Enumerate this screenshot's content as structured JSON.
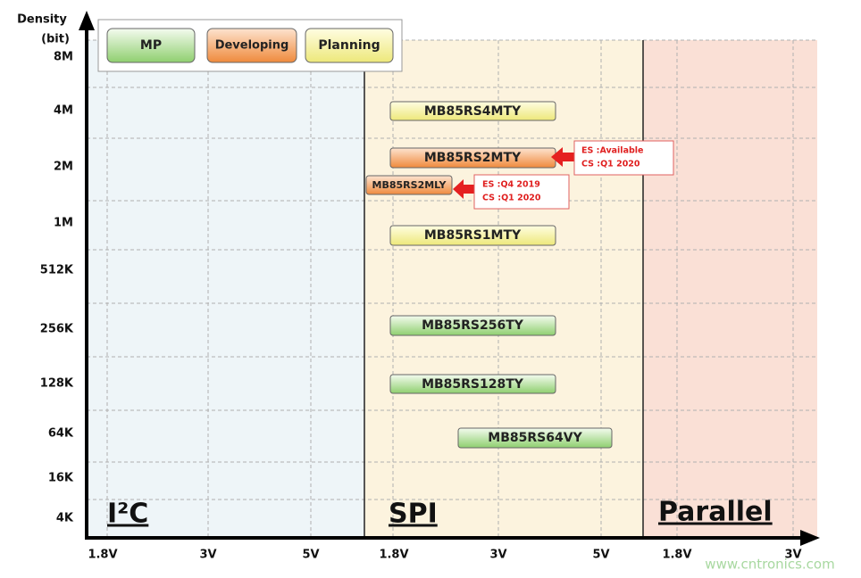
{
  "axis": {
    "title_line1": "Density",
    "title_line2": "(bit)",
    "densities": [
      "8M",
      "4M",
      "2M",
      "1M",
      "512K",
      "256K",
      "128K",
      "64K",
      "16K",
      "4K"
    ],
    "voltages": [
      "1.8V",
      "3V",
      "5V",
      "1.8V",
      "3V",
      "5V",
      "1.8V",
      "3V"
    ]
  },
  "legend": {
    "items": [
      "MP",
      "Developing",
      "Planning"
    ]
  },
  "sections": [
    "I²C",
    "SPI",
    "Parallel"
  ],
  "products": [
    "MB85RS4MTY",
    "MB85RS2MTY",
    "MB85RS2MLY",
    "MB85RS1MTY",
    "MB85RS256TY",
    "MB85RS128TY",
    "MB85RS64VY"
  ],
  "callouts": [
    {
      "line1": "ES :Available",
      "line2": "CS :Q1 2020"
    },
    {
      "line1": "ES :Q4 2019",
      "line2": "CS :Q1 2020"
    }
  ],
  "watermark": "www.cntronics.com"
}
